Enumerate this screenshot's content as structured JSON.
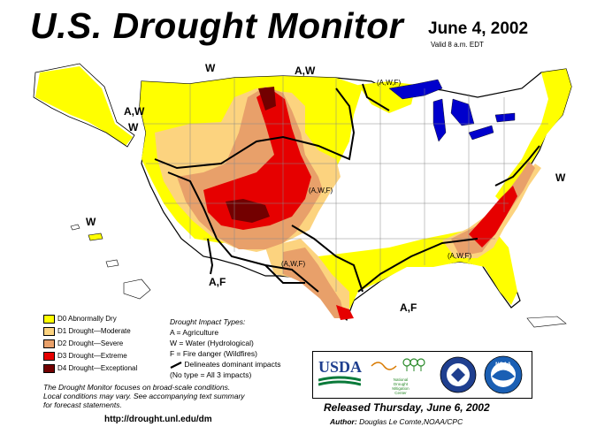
{
  "header": {
    "title": "U.S. Drought Monitor",
    "date": "June 4, 2002",
    "valid": "Valid 8 a.m. EDT"
  },
  "map_labels": {
    "w_north": "W",
    "aw_north": "A,W",
    "awf_great_lakes": "(A,W,F)",
    "aw_northwest": "A,W",
    "w_northwest": "W",
    "awf_colorado": "(A,W,F)",
    "w_east": "W",
    "w_hawaii": "W",
    "awf_texas": "(A,W,F)",
    "awf_southeast": "(A,W,F)",
    "af_southwest": "A,F",
    "af_gulf": "A,F"
  },
  "legend": {
    "items": [
      {
        "label": "D0 Abnormally Dry",
        "color": "#ffff00"
      },
      {
        "label": "D1 Drought—Moderate",
        "color": "#fcd37f"
      },
      {
        "label": "D2 Drought—Severe",
        "color": "#e8a06a"
      },
      {
        "label": "D3 Drought—Extreme",
        "color": "#e60000"
      },
      {
        "label": "D4 Drought—Exceptional",
        "color": "#730000"
      }
    ]
  },
  "impacts": {
    "heading": "Drought Impact Types:",
    "a": "A = Agriculture",
    "w": "W = Water (Hydrological)",
    "f": "F = Fire danger (Wildfires)",
    "delineates": "Delineates dominant impacts",
    "none": "(No type = All 3 impacts)"
  },
  "footer": {
    "focus_line1": "The Drought Monitor focuses on broad-scale conditions.",
    "focus_line2": "Local conditions may vary. See accompanying text summary",
    "focus_line3": "for forecast statements.",
    "url": "http://drought.unl.edu/dm",
    "released": "Released Thursday, June 6, 2002",
    "author_label": "Author:",
    "author": "Douglas Le Comte,NOAA/CPC"
  },
  "logos": {
    "usda": "USDA",
    "ndmc_line1": "National",
    "ndmc_line2": "Drought",
    "ndmc_line3": "Mitigation",
    "ndmc_line4": "Center",
    "noaa": "NOAA"
  },
  "colors": {
    "d0": "#ffff00",
    "d1": "#fcd37f",
    "d2": "#e8a06a",
    "d3": "#e60000",
    "d4": "#730000",
    "water": "#0000cc",
    "usda_green": "#0a7a3a",
    "usda_blue": "#1f3f8f",
    "noaa_blue": "#1a5fb4"
  }
}
